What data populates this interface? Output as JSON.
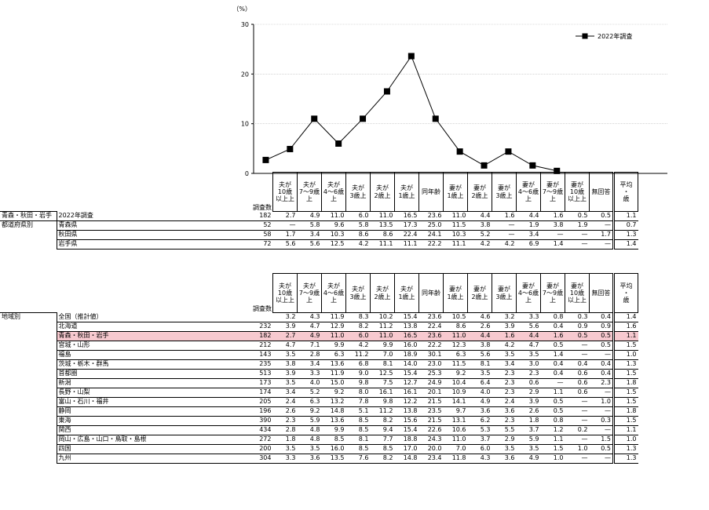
{
  "chart_data": {
    "type": "line",
    "unit": "（%）",
    "yticks": [
      "0",
      "10",
      "20",
      "30"
    ],
    "ylim": [
      0,
      30
    ],
    "categories": [
      "夫が10歳以上上",
      "夫が7～9歳上",
      "夫が4～6歳上",
      "夫が3歳上",
      "夫が2歳上",
      "夫が1歳上",
      "同年齢",
      "妻が1歳上",
      "妻が2歳上",
      "妻が3歳上",
      "妻が4～6歳上",
      "妻が7～9歳上",
      "妻が10歳以上上"
    ],
    "series": [
      {
        "name": "2022年調査",
        "values": [
          2.7,
          4.9,
          11.0,
          6.0,
          11.0,
          16.5,
          23.6,
          11.0,
          4.4,
          1.6,
          4.4,
          1.6,
          0.5
        ]
      }
    ],
    "legend_position": "top-right",
    "grid": true
  },
  "table1": {
    "headers": [
      "夫が10歳以上上",
      "夫が7～9歳上",
      "夫が4～6歳上",
      "夫が3歳上",
      "夫が2歳上",
      "夫が1歳上",
      "同年齢",
      "妻が1歳上",
      "妻が2歳上",
      "妻が3歳上",
      "妻が4～6歳上",
      "妻が7～9歳上",
      "妻が10歳以上上",
      "無回答",
      "平均・歳"
    ],
    "count_label": "調査数",
    "rows": [
      {
        "group": "青森・秋田・岩手",
        "label": "2022年調査",
        "n": "182",
        "v": [
          "2.7",
          "4.9",
          "11.0",
          "6.0",
          "11.0",
          "16.5",
          "23.6",
          "11.0",
          "4.4",
          "1.6",
          "4.4",
          "1.6",
          "0.5",
          "0.5",
          "1.1"
        ]
      },
      {
        "group": "都道府県別",
        "label": "青森県",
        "n": "52",
        "v": [
          "—",
          "5.8",
          "9.6",
          "5.8",
          "13.5",
          "17.3",
          "25.0",
          "11.5",
          "3.8",
          "—",
          "1.9",
          "3.8",
          "1.9",
          "—",
          "0.7"
        ]
      },
      {
        "group": "",
        "label": "秋田県",
        "n": "58",
        "v": [
          "1.7",
          "3.4",
          "10.3",
          "8.6",
          "8.6",
          "22.4",
          "24.1",
          "10.3",
          "5.2",
          "—",
          "3.4",
          "—",
          "—",
          "1.7",
          "1.3"
        ]
      },
      {
        "group": "",
        "label": "岩手県",
        "n": "72",
        "v": [
          "5.6",
          "5.6",
          "12.5",
          "4.2",
          "11.1",
          "11.1",
          "22.2",
          "11.1",
          "4.2",
          "4.2",
          "6.9",
          "1.4",
          "—",
          "—",
          "1.4"
        ]
      }
    ]
  },
  "table2": {
    "group": "地域別",
    "count_label": "調査数",
    "rows": [
      {
        "label": "全国（推計値）",
        "n": "",
        "v": [
          "3.2",
          "4.3",
          "11.9",
          "8.3",
          "10.2",
          "15.4",
          "23.6",
          "10.5",
          "4.6",
          "3.2",
          "3.3",
          "0.8",
          "0.3",
          "0.4",
          "1.4"
        ]
      },
      {
        "label": "北海道",
        "n": "232",
        "v": [
          "3.9",
          "4.7",
          "12.9",
          "8.2",
          "11.2",
          "13.8",
          "22.4",
          "8.6",
          "2.6",
          "3.9",
          "5.6",
          "0.4",
          "0.9",
          "0.9",
          "1.6"
        ]
      },
      {
        "label": "青森・秋田・岩手",
        "n": "182",
        "v": [
          "2.7",
          "4.9",
          "11.0",
          "6.0",
          "11.0",
          "16.5",
          "23.6",
          "11.0",
          "4.4",
          "1.6",
          "4.4",
          "1.6",
          "0.5",
          "0.5",
          "1.1"
        ],
        "highlight": true
      },
      {
        "label": "宮城・山形",
        "n": "212",
        "v": [
          "4.7",
          "7.1",
          "9.9",
          "4.2",
          "9.9",
          "16.0",
          "22.2",
          "12.3",
          "3.8",
          "4.2",
          "4.7",
          "0.5",
          "—",
          "0.5",
          "1.5"
        ]
      },
      {
        "label": "福島",
        "n": "143",
        "v": [
          "3.5",
          "2.8",
          "6.3",
          "11.2",
          "7.0",
          "18.9",
          "30.1",
          "6.3",
          "5.6",
          "3.5",
          "3.5",
          "1.4",
          "—",
          "—",
          "1.0"
        ]
      },
      {
        "label": "茨城・栃木・群馬",
        "n": "235",
        "v": [
          "3.8",
          "3.4",
          "13.6",
          "6.8",
          "8.1",
          "14.0",
          "23.0",
          "11.5",
          "8.1",
          "3.4",
          "3.0",
          "0.4",
          "0.4",
          "0.4",
          "1.3"
        ]
      },
      {
        "label": "首都圏",
        "n": "513",
        "v": [
          "3.9",
          "3.3",
          "11.9",
          "9.0",
          "12.5",
          "15.4",
          "25.3",
          "9.2",
          "3.5",
          "2.3",
          "2.3",
          "0.4",
          "0.6",
          "0.4",
          "1.5"
        ]
      },
      {
        "label": "新潟",
        "n": "173",
        "v": [
          "3.5",
          "4.0",
          "15.0",
          "9.8",
          "7.5",
          "12.7",
          "24.9",
          "10.4",
          "6.4",
          "2.3",
          "0.6",
          "—",
          "0.6",
          "2.3",
          "1.8"
        ]
      },
      {
        "label": "長野・山梨",
        "n": "174",
        "v": [
          "3.4",
          "5.2",
          "9.2",
          "8.0",
          "16.1",
          "16.1",
          "20.1",
          "10.9",
          "4.0",
          "2.3",
          "2.9",
          "1.1",
          "0.6",
          "—",
          "1.5"
        ]
      },
      {
        "label": "富山・石川・福井",
        "n": "205",
        "v": [
          "2.4",
          "6.3",
          "13.2",
          "7.8",
          "9.8",
          "12.2",
          "21.5",
          "14.1",
          "4.9",
          "2.4",
          "3.9",
          "0.5",
          "—",
          "1.0",
          "1.5"
        ]
      },
      {
        "label": "静岡",
        "n": "196",
        "v": [
          "2.6",
          "9.2",
          "14.8",
          "5.1",
          "11.2",
          "13.8",
          "23.5",
          "9.7",
          "3.6",
          "3.6",
          "2.6",
          "0.5",
          "—",
          "—",
          "1.8"
        ]
      },
      {
        "label": "東海",
        "n": "390",
        "v": [
          "2.3",
          "5.9",
          "13.6",
          "8.5",
          "8.2",
          "15.6",
          "21.5",
          "13.1",
          "6.2",
          "2.3",
          "1.8",
          "0.8",
          "—",
          "0.3",
          "1.5"
        ]
      },
      {
        "label": "関西",
        "n": "434",
        "v": [
          "2.8",
          "4.8",
          "9.9",
          "8.5",
          "9.4",
          "15.4",
          "22.6",
          "10.6",
          "5.3",
          "5.5",
          "3.7",
          "1.2",
          "0.2",
          "—",
          "1.1"
        ]
      },
      {
        "label": "岡山・広島・山口・鳥取・島根",
        "n": "272",
        "v": [
          "1.8",
          "4.8",
          "8.5",
          "8.1",
          "7.7",
          "18.8",
          "24.3",
          "11.0",
          "3.7",
          "2.9",
          "5.9",
          "1.1",
          "—",
          "1.5",
          "1.0"
        ]
      },
      {
        "label": "四国",
        "n": "200",
        "v": [
          "3.5",
          "3.5",
          "16.0",
          "8.5",
          "8.5",
          "17.0",
          "20.0",
          "7.0",
          "6.0",
          "3.5",
          "3.5",
          "1.5",
          "1.0",
          "0.5",
          "1.3"
        ]
      },
      {
        "label": "九州",
        "n": "304",
        "v": [
          "3.3",
          "3.6",
          "13.5",
          "7.6",
          "8.2",
          "14.8",
          "23.4",
          "11.8",
          "4.3",
          "3.6",
          "4.9",
          "1.0",
          "—",
          "—",
          "1.3"
        ]
      }
    ]
  }
}
